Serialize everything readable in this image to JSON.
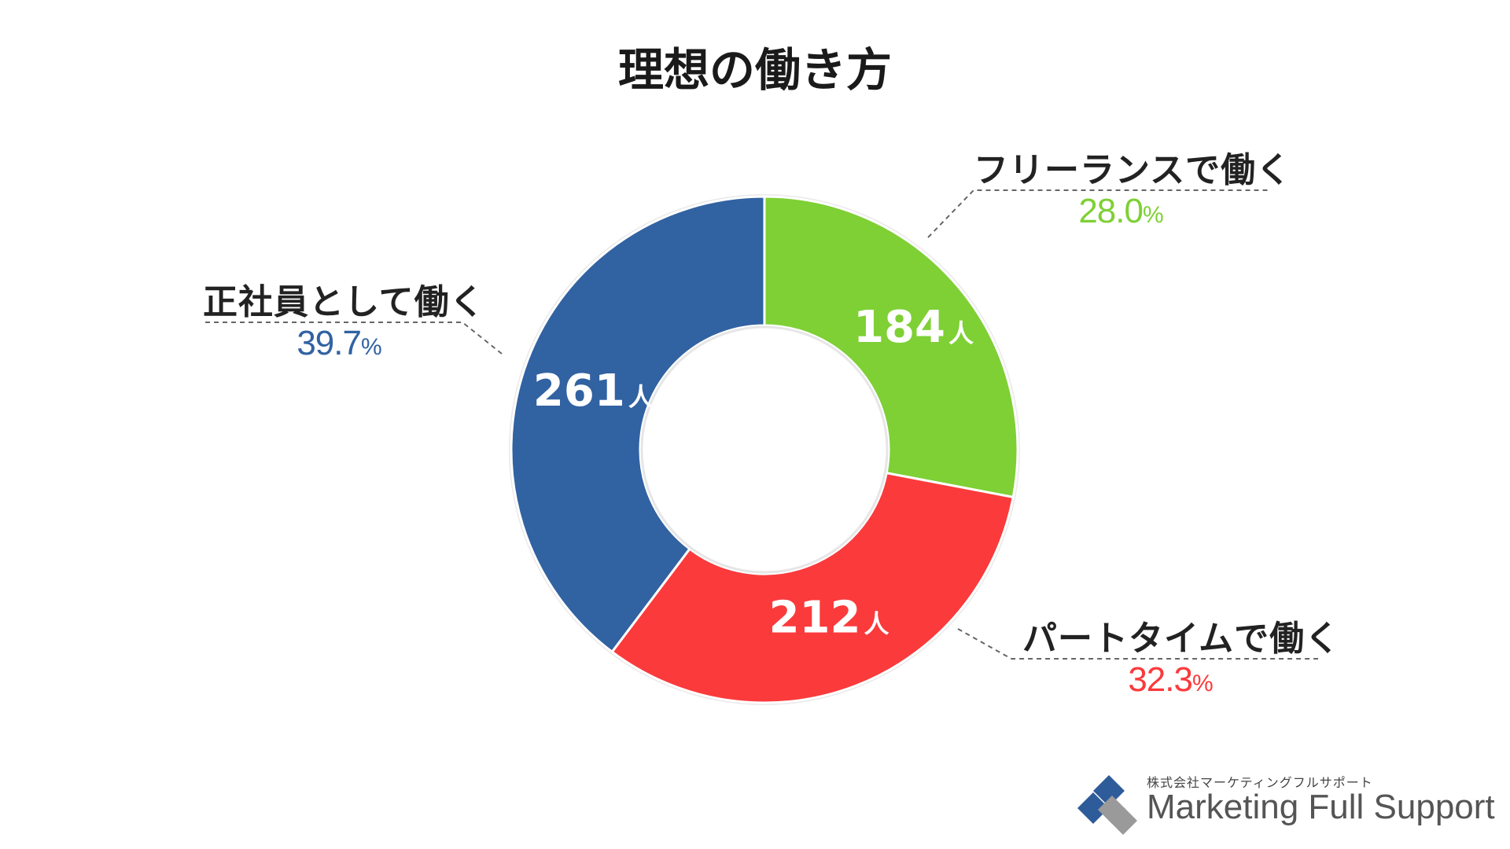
{
  "chart_data": {
    "type": "pie",
    "variant": "donut",
    "title": "理想の働き方",
    "unit": "人",
    "percent_sign": "%",
    "slices": [
      {
        "label": "フリーランスで働く",
        "value": 184,
        "percent": "28.0",
        "color": "#7ed035",
        "pct_color": "#7ed035"
      },
      {
        "label": "パートタイムで働く",
        "value": 212,
        "percent": "32.3",
        "color": "#fb3a3c",
        "pct_color": "#fb3a3c"
      },
      {
        "label": "正社員として働く",
        "value": 261,
        "percent": "39.7",
        "color": "#3162a2",
        "pct_color": "#3162a2"
      }
    ],
    "start": "12 o'clock",
    "direction": "clockwise"
  },
  "logo": {
    "company_jp": "株式会社マーケティングフルサポート",
    "company_en": "Marketing Full Support"
  }
}
